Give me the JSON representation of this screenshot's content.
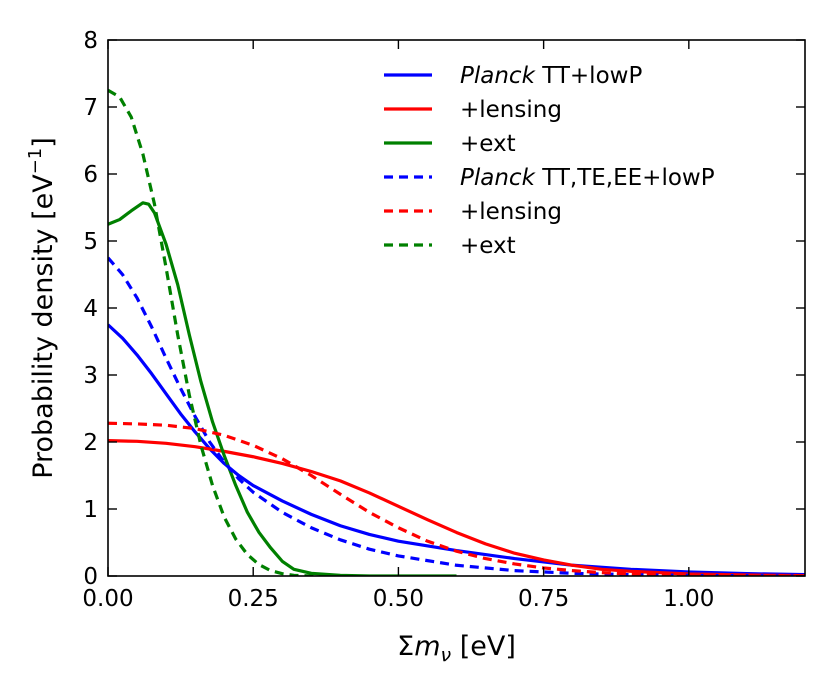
{
  "chart_data": {
    "type": "line",
    "title": "",
    "xlabel_prefix": "Σ",
    "xlabel_var": "m",
    "xlabel_sub": "ν",
    "xlabel_unit": " [eV]",
    "ylabel_text": "Probability density [eV",
    "ylabel_sup": "−1",
    "ylabel_close": "]",
    "xlim": [
      0,
      1.2
    ],
    "ylim": [
      0,
      8
    ],
    "xticks": [
      0.0,
      0.25,
      0.5,
      0.75,
      1.0
    ],
    "xtick_labels": [
      "0.00",
      "0.25",
      "0.50",
      "0.75",
      "1.00"
    ],
    "yticks": [
      0,
      1,
      2,
      3,
      4,
      5,
      6,
      7,
      8
    ],
    "ytick_labels": [
      "0",
      "1",
      "2",
      "3",
      "4",
      "5",
      "6",
      "7",
      "8"
    ],
    "legend_position": "top-right",
    "series": [
      {
        "name": "Planck TT+lowP",
        "italic": "Planck",
        "rest": " TT+lowP",
        "color": "#0000ff",
        "style": "solid",
        "x": [
          0,
          0.025,
          0.05,
          0.075,
          0.1,
          0.125,
          0.15,
          0.175,
          0.2,
          0.225,
          0.25,
          0.3,
          0.35,
          0.4,
          0.45,
          0.5,
          0.6,
          0.7,
          0.8,
          0.9,
          1.0,
          1.1,
          1.2
        ],
        "y": [
          3.75,
          3.55,
          3.3,
          3.02,
          2.72,
          2.42,
          2.15,
          1.9,
          1.68,
          1.5,
          1.35,
          1.12,
          0.92,
          0.75,
          0.62,
          0.52,
          0.38,
          0.26,
          0.16,
          0.1,
          0.06,
          0.035,
          0.02
        ]
      },
      {
        "name": "+lensing",
        "italic": "",
        "rest": "+lensing",
        "color": "#ff0000",
        "style": "solid",
        "x": [
          0,
          0.05,
          0.1,
          0.15,
          0.2,
          0.25,
          0.3,
          0.35,
          0.4,
          0.45,
          0.5,
          0.55,
          0.6,
          0.65,
          0.7,
          0.75,
          0.8,
          0.85,
          0.9,
          1.0,
          1.1,
          1.2
        ],
        "y": [
          2.02,
          2.01,
          1.98,
          1.93,
          1.86,
          1.78,
          1.68,
          1.56,
          1.42,
          1.24,
          1.04,
          0.84,
          0.65,
          0.48,
          0.34,
          0.24,
          0.16,
          0.1,
          0.07,
          0.03,
          0.015,
          0.005
        ]
      },
      {
        "name": "+ext",
        "italic": "",
        "rest": "+ext",
        "color": "#008000",
        "style": "solid",
        "x": [
          0,
          0.02,
          0.04,
          0.06,
          0.07,
          0.08,
          0.1,
          0.12,
          0.14,
          0.16,
          0.18,
          0.2,
          0.22,
          0.24,
          0.26,
          0.28,
          0.3,
          0.32,
          0.35,
          0.4,
          0.45,
          0.5,
          0.6
        ],
        "y": [
          5.25,
          5.32,
          5.45,
          5.57,
          5.55,
          5.42,
          4.95,
          4.35,
          3.6,
          2.9,
          2.3,
          1.8,
          1.35,
          0.95,
          0.65,
          0.42,
          0.22,
          0.1,
          0.04,
          0.01,
          0.0,
          0.0,
          0.0
        ]
      },
      {
        "name": "Planck TT,TE,EE+lowP",
        "italic": "Planck",
        "rest": " TT,TE,EE+lowP",
        "color": "#0000ff",
        "style": "dashed",
        "x": [
          0,
          0.025,
          0.05,
          0.075,
          0.1,
          0.125,
          0.15,
          0.175,
          0.2,
          0.225,
          0.25,
          0.3,
          0.35,
          0.4,
          0.45,
          0.5,
          0.6,
          0.7,
          0.8,
          0.9,
          1.0,
          1.1,
          1.2
        ],
        "y": [
          4.75,
          4.5,
          4.15,
          3.72,
          3.25,
          2.8,
          2.38,
          2.0,
          1.7,
          1.45,
          1.25,
          0.95,
          0.72,
          0.54,
          0.4,
          0.3,
          0.16,
          0.08,
          0.04,
          0.02,
          0.01,
          0.005,
          0.0
        ]
      },
      {
        "name": "+lensing",
        "italic": "",
        "rest": "+lensing",
        "color": "#ff0000",
        "style": "dashed",
        "x": [
          0,
          0.05,
          0.1,
          0.15,
          0.2,
          0.25,
          0.3,
          0.35,
          0.4,
          0.45,
          0.5,
          0.55,
          0.6,
          0.65,
          0.7,
          0.75,
          0.8,
          0.85,
          0.9,
          1.0,
          1.1,
          1.2
        ],
        "y": [
          2.28,
          2.27,
          2.25,
          2.2,
          2.1,
          1.95,
          1.75,
          1.5,
          1.22,
          0.95,
          0.72,
          0.52,
          0.37,
          0.26,
          0.18,
          0.12,
          0.08,
          0.05,
          0.03,
          0.01,
          0.005,
          0.0
        ]
      },
      {
        "name": "+ext",
        "italic": "",
        "rest": "+ext",
        "color": "#008000",
        "style": "dashed",
        "x": [
          0,
          0.02,
          0.04,
          0.06,
          0.08,
          0.1,
          0.12,
          0.14,
          0.16,
          0.18,
          0.2,
          0.22,
          0.24,
          0.26,
          0.28,
          0.3,
          0.32,
          0.35,
          0.4
        ],
        "y": [
          7.25,
          7.15,
          6.85,
          6.3,
          5.55,
          4.6,
          3.6,
          2.7,
          1.95,
          1.35,
          0.88,
          0.55,
          0.32,
          0.17,
          0.08,
          0.035,
          0.01,
          0.0,
          0.0
        ]
      }
    ]
  }
}
